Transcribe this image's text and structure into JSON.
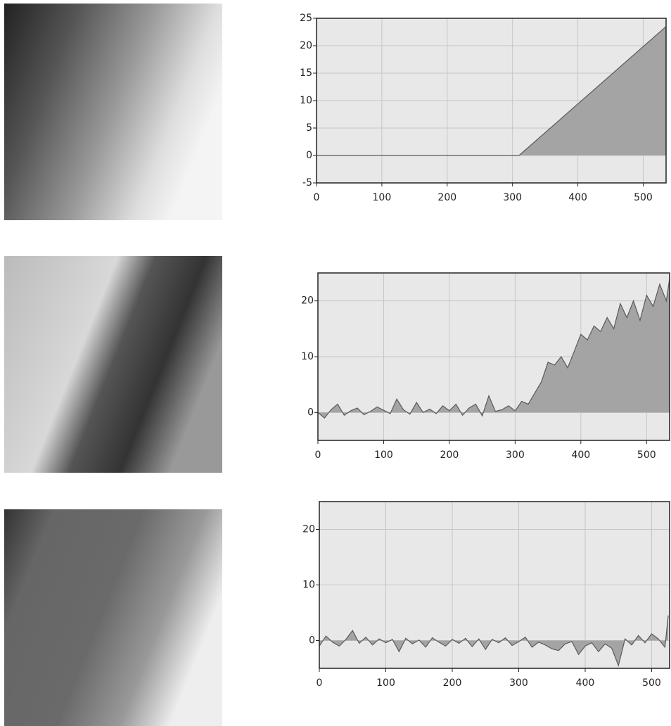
{
  "chart_data": [
    {
      "type": "area",
      "color": "#a4a4a4",
      "line_color": "#5a5a5a",
      "grid": true,
      "x": [
        0,
        310,
        535
      ],
      "values": [
        0,
        0,
        23.5
      ],
      "xlim": [
        0,
        535
      ],
      "xticks": [
        0,
        100,
        200,
        300,
        400,
        500
      ],
      "ylim": [
        -5,
        25
      ],
      "yticks": [
        -5,
        0,
        5,
        10,
        15,
        20,
        25
      ]
    },
    {
      "type": "area",
      "color": "#a4a4a4",
      "line_color": "#5a5a5a",
      "grid": true,
      "x": [
        0,
        10,
        20,
        30,
        40,
        50,
        60,
        70,
        80,
        90,
        100,
        110,
        120,
        130,
        140,
        150,
        160,
        170,
        180,
        190,
        200,
        210,
        220,
        230,
        240,
        250,
        260,
        270,
        280,
        290,
        300,
        310,
        320,
        330,
        340,
        350,
        360,
        370,
        380,
        390,
        400,
        410,
        420,
        430,
        440,
        450,
        460,
        470,
        480,
        490,
        500,
        510,
        520,
        530,
        535
      ],
      "values": [
        0,
        -1,
        0.5,
        1.5,
        -0.5,
        0.3,
        0.8,
        -0.4,
        0.2,
        1,
        0.4,
        -0.2,
        2.4,
        0.5,
        -0.3,
        1.8,
        0,
        0.6,
        -0.2,
        1.2,
        0.3,
        1.5,
        -0.5,
        0.8,
        1.5,
        -0.6,
        3,
        0.2,
        0.5,
        1.2,
        0.3,
        2,
        1.5,
        3.5,
        5.5,
        9,
        8.5,
        10,
        8,
        11,
        14,
        13,
        15.5,
        14.5,
        17,
        15,
        19.5,
        17,
        20,
        16.5,
        21,
        19,
        23,
        20,
        24
      ],
      "xlim": [
        0,
        535
      ],
      "xticks": [
        0,
        100,
        200,
        300,
        400,
        500
      ],
      "ylim": [
        -5,
        25
      ],
      "yticks": [
        0,
        10,
        20
      ]
    },
    {
      "type": "area",
      "color": "#a4a4a4",
      "line_color": "#5a5a5a",
      "grid": true,
      "x": [
        0,
        10,
        20,
        30,
        40,
        50,
        60,
        70,
        80,
        90,
        100,
        110,
        120,
        130,
        140,
        150,
        160,
        170,
        180,
        190,
        200,
        210,
        220,
        230,
        240,
        250,
        260,
        270,
        280,
        290,
        300,
        310,
        320,
        330,
        340,
        350,
        360,
        370,
        380,
        390,
        400,
        410,
        420,
        430,
        440,
        450,
        460,
        470,
        480,
        490,
        500,
        510,
        520,
        525
      ],
      "values": [
        -1,
        0.8,
        -0.3,
        -1,
        0.2,
        1.8,
        -0.5,
        0.6,
        -0.8,
        0.3,
        -0.4,
        0.2,
        -2,
        0.4,
        -0.6,
        0.1,
        -1.2,
        0.5,
        -0.3,
        -1,
        0.2,
        -0.5,
        0.4,
        -1.1,
        0.3,
        -1.6,
        0.2,
        -0.4,
        0.5,
        -0.9,
        -0.2,
        0.6,
        -1.2,
        -0.3,
        -0.8,
        -1.5,
        -1.8,
        -0.6,
        -0.2,
        -2.5,
        -1,
        -0.4,
        -2,
        -0.6,
        -1.4,
        -4.5,
        0.3,
        -0.8,
        0.9,
        -0.4,
        1.2,
        0.3,
        -1.2,
        4.5
      ],
      "xlim": [
        0,
        527
      ],
      "xticks": [
        0,
        100,
        200,
        300,
        400,
        500
      ],
      "ylim": [
        -5,
        25
      ],
      "yticks": [
        0,
        10,
        20
      ]
    }
  ]
}
